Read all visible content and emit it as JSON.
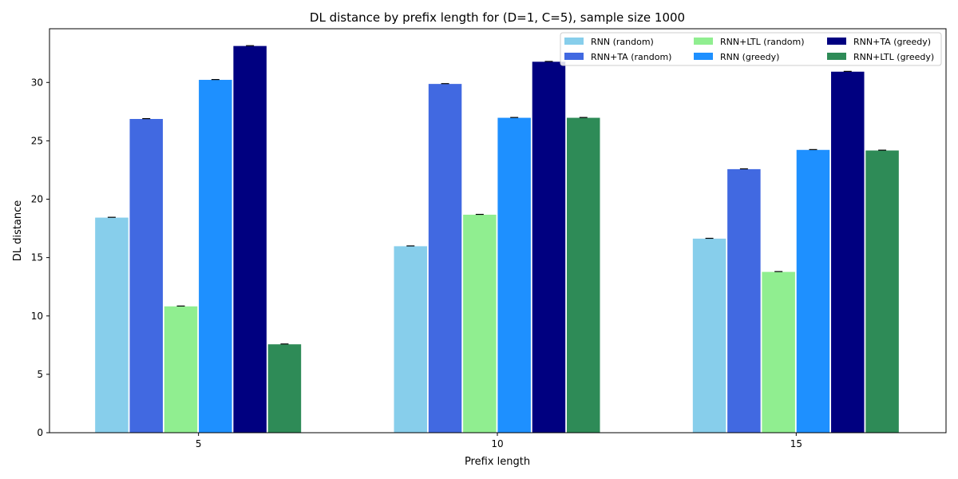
{
  "chart_data": {
    "type": "bar",
    "title": "DL distance by prefix length for (D=1, C=5), sample size 1000",
    "xlabel": "Prefix length",
    "ylabel": "DL distance",
    "categories": [
      "5",
      "10",
      "15"
    ],
    "ylim": [
      0,
      34.6
    ],
    "yticks": [
      0,
      5,
      10,
      15,
      20,
      25,
      30
    ],
    "grid": false,
    "legend_position": "top-right",
    "legend_columns": 3,
    "series": [
      {
        "name": "RNN (random)",
        "color": "#87CEEB",
        "values": [
          18.45,
          16.0,
          16.65
        ]
      },
      {
        "name": "RNN+TA (random)",
        "color": "#4169E1",
        "values": [
          26.9,
          29.9,
          22.6
        ]
      },
      {
        "name": "RNN+LTL (random)",
        "color": "#90EE90",
        "values": [
          10.85,
          18.7,
          13.8
        ]
      },
      {
        "name": "RNN (greedy)",
        "color": "#1E90FF",
        "values": [
          30.25,
          27.0,
          24.25
        ]
      },
      {
        "name": "RNN+TA (greedy)",
        "color": "#000080",
        "values": [
          33.15,
          31.8,
          30.95
        ]
      },
      {
        "name": "RNN+LTL (greedy)",
        "color": "#2E8B57",
        "values": [
          7.6,
          27.0,
          24.2
        ]
      }
    ]
  }
}
